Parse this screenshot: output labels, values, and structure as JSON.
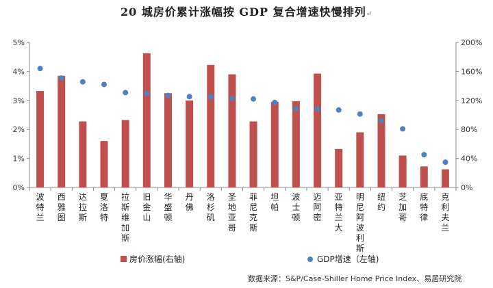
{
  "chart_data": {
    "type": "bar+scatter",
    "title": "20 城房价累计涨幅按 GDP 复合增速快慢排列",
    "title_mark": "↵",
    "categories": [
      "波特兰",
      "西雅图",
      "达拉斯",
      "夏洛特",
      "拉斯维加斯",
      "旧金山",
      "华盛顿",
      "丹佛",
      "洛杉矶",
      "圣地亚哥",
      "菲尼克斯",
      "坦帕",
      "波士顿",
      "迈阿密",
      "亚特兰大",
      "明尼阿波利斯",
      "纽约",
      "芝加哥",
      "底特律",
      "克利夫兰"
    ],
    "series": [
      {
        "name": "房价涨幅(右轴)",
        "type": "bar",
        "color": "#c0504d",
        "values": [
          133,
          154,
          91,
          64,
          93,
          185,
          130,
          120,
          169,
          156,
          91,
          118,
          119,
          157,
          53,
          76,
          101,
          44,
          29,
          25
        ]
      },
      {
        "name": "GDP增速（左轴)",
        "type": "scatter",
        "color": "#4f81bd",
        "values": [
          4.1,
          3.77,
          3.64,
          3.55,
          3.27,
          3.24,
          3.17,
          3.13,
          3.13,
          3.07,
          3.05,
          2.93,
          2.72,
          2.7,
          2.67,
          2.53,
          2.3,
          2.02,
          1.13,
          0.87
        ]
      }
    ],
    "left_axis": {
      "min": 0,
      "max": 5,
      "step": 1,
      "ticks": [
        "0%",
        "1%",
        "2%",
        "3%",
        "4%",
        "5%"
      ]
    },
    "right_axis": {
      "min": 0,
      "max": 200,
      "step": 40,
      "ticks": [
        "0%",
        "40%",
        "80%",
        "120%",
        "160%",
        "200%"
      ]
    },
    "grid": false
  },
  "legend": {
    "bar_label": "房价涨幅(右轴)",
    "dot_label": "GDP增速（左轴)"
  },
  "source": "数据来源：S&P/Case-Shiller Home Price Index、易居研究院"
}
